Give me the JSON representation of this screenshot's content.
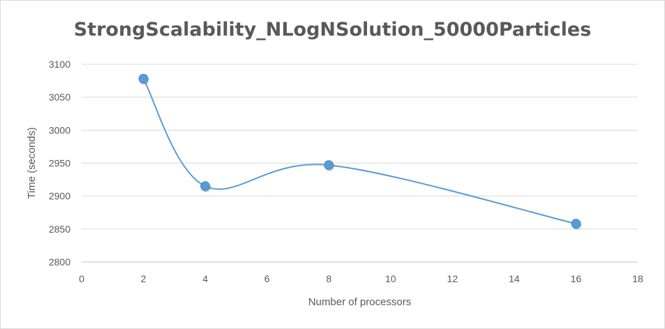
{
  "chart_data": {
    "type": "scatter",
    "title": "StrongScalability_NLogNSolution_50000Particles",
    "xlabel": "Number of processors",
    "ylabel": "Time (seconds)",
    "xlim": [
      0,
      18
    ],
    "ylim": [
      2800,
      3100
    ],
    "x_ticks": [
      0,
      2,
      4,
      6,
      8,
      10,
      12,
      14,
      16,
      18
    ],
    "y_ticks": [
      2800,
      2850,
      2900,
      2950,
      3000,
      3050,
      3100
    ],
    "grid": "horizontal",
    "smoothed_line": true,
    "series": [
      {
        "x": [
          2,
          4,
          8,
          16
        ],
        "y": [
          3078,
          2915,
          2947,
          2858
        ],
        "color": "#5b9bd5"
      }
    ]
  }
}
